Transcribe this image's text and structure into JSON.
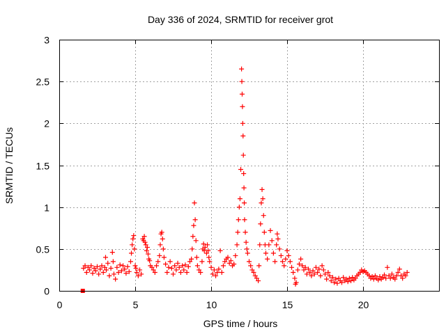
{
  "chart_data": {
    "type": "scatter",
    "title": "Day 336 of 2024, SRMTID for receiver grot",
    "xlabel": "GPS time / hours",
    "ylabel": "SRMTID / TECUs",
    "xlim": [
      0,
      25
    ],
    "ylim": [
      0,
      3
    ],
    "xticks": [
      0,
      5,
      10,
      15,
      20
    ],
    "xtick_labels": [
      "0",
      "5",
      "10",
      "15",
      "20"
    ],
    "yticks": [
      0,
      0.5,
      1,
      1.5,
      2,
      2.5,
      3
    ],
    "ytick_labels": [
      "0",
      "0.5",
      "1",
      "1.5",
      "2",
      "2.5",
      "3"
    ],
    "grid": true,
    "legend": "none",
    "marker": "plus",
    "color": "#ff0000",
    "outlier_marker": {
      "x": 1.55,
      "y": 0.0,
      "marker": "square"
    },
    "series": [
      {
        "name": "SRMTID",
        "points": [
          [
            1.6,
            0.27
          ],
          [
            1.7,
            0.3
          ],
          [
            1.8,
            0.22
          ],
          [
            1.9,
            0.28
          ],
          [
            2.0,
            0.25
          ],
          [
            2.1,
            0.3
          ],
          [
            2.2,
            0.21
          ],
          [
            2.3,
            0.27
          ],
          [
            2.4,
            0.24
          ],
          [
            2.5,
            0.29
          ],
          [
            2.6,
            0.2
          ],
          [
            2.7,
            0.26
          ],
          [
            2.8,
            0.3
          ],
          [
            2.9,
            0.22
          ],
          [
            3.0,
            0.28
          ],
          [
            3.05,
            0.4
          ],
          [
            3.1,
            0.25
          ],
          [
            3.2,
            0.33
          ],
          [
            3.3,
            0.18
          ],
          [
            3.4,
            0.27
          ],
          [
            3.5,
            0.46
          ],
          [
            3.55,
            0.35
          ],
          [
            3.6,
            0.2
          ],
          [
            3.7,
            0.14
          ],
          [
            3.8,
            0.28
          ],
          [
            3.9,
            0.22
          ],
          [
            4.0,
            0.31
          ],
          [
            4.1,
            0.24
          ],
          [
            4.2,
            0.3
          ],
          [
            4.3,
            0.26
          ],
          [
            4.4,
            0.21
          ],
          [
            4.5,
            0.29
          ],
          [
            4.6,
            0.23
          ],
          [
            4.7,
            0.35
          ],
          [
            4.75,
            0.45
          ],
          [
            4.8,
            0.55
          ],
          [
            4.85,
            0.62
          ],
          [
            4.9,
            0.66
          ],
          [
            4.95,
            0.5
          ],
          [
            5.0,
            0.3
          ],
          [
            5.05,
            0.27
          ],
          [
            5.1,
            0.22
          ],
          [
            5.2,
            0.18
          ],
          [
            5.3,
            0.25
          ],
          [
            5.4,
            0.2
          ],
          [
            5.5,
            0.62
          ],
          [
            5.55,
            0.6
          ],
          [
            5.6,
            0.65
          ],
          [
            5.65,
            0.58
          ],
          [
            5.7,
            0.55
          ],
          [
            5.75,
            0.48
          ],
          [
            5.8,
            0.52
          ],
          [
            5.85,
            0.44
          ],
          [
            5.9,
            0.38
          ],
          [
            5.95,
            0.36
          ],
          [
            6.0,
            0.3
          ],
          [
            6.1,
            0.28
          ],
          [
            6.2,
            0.25
          ],
          [
            6.3,
            0.22
          ],
          [
            6.4,
            0.3
          ],
          [
            6.5,
            0.35
          ],
          [
            6.6,
            0.42
          ],
          [
            6.65,
            0.55
          ],
          [
            6.7,
            0.68
          ],
          [
            6.75,
            0.7
          ],
          [
            6.8,
            0.62
          ],
          [
            6.85,
            0.5
          ],
          [
            6.9,
            0.4
          ],
          [
            7.0,
            0.32
          ],
          [
            7.1,
            0.22
          ],
          [
            7.2,
            0.28
          ],
          [
            7.3,
            0.35
          ],
          [
            7.4,
            0.27
          ],
          [
            7.5,
            0.2
          ],
          [
            7.6,
            0.3
          ],
          [
            7.7,
            0.25
          ],
          [
            7.8,
            0.33
          ],
          [
            7.9,
            0.28
          ],
          [
            8.0,
            0.22
          ],
          [
            8.1,
            0.3
          ],
          [
            8.2,
            0.25
          ],
          [
            8.3,
            0.31
          ],
          [
            8.4,
            0.22
          ],
          [
            8.5,
            0.29
          ],
          [
            8.6,
            0.35
          ],
          [
            8.7,
            0.38
          ],
          [
            8.75,
            0.5
          ],
          [
            8.8,
            0.65
          ],
          [
            8.85,
            0.78
          ],
          [
            8.9,
            1.05
          ],
          [
            8.95,
            0.85
          ],
          [
            9.0,
            0.6
          ],
          [
            9.05,
            0.4
          ],
          [
            9.1,
            0.3
          ],
          [
            9.2,
            0.25
          ],
          [
            9.3,
            0.22
          ],
          [
            9.4,
            0.35
          ],
          [
            9.45,
            0.5
          ],
          [
            9.5,
            0.56
          ],
          [
            9.55,
            0.48
          ],
          [
            9.6,
            0.52
          ],
          [
            9.7,
            0.45
          ],
          [
            9.75,
            0.55
          ],
          [
            9.8,
            0.48
          ],
          [
            9.85,
            0.4
          ],
          [
            9.9,
            0.35
          ],
          [
            10.0,
            0.28
          ],
          [
            10.1,
            0.2
          ],
          [
            10.2,
            0.25
          ],
          [
            10.3,
            0.18
          ],
          [
            10.4,
            0.22
          ],
          [
            10.5,
            0.26
          ],
          [
            10.6,
            0.48
          ],
          [
            10.7,
            0.22
          ],
          [
            10.8,
            0.3
          ],
          [
            10.9,
            0.35
          ],
          [
            11.0,
            0.38
          ],
          [
            11.1,
            0.4
          ],
          [
            11.2,
            0.33
          ],
          [
            11.3,
            0.36
          ],
          [
            11.4,
            0.3
          ],
          [
            11.5,
            0.32
          ],
          [
            11.6,
            0.42
          ],
          [
            11.7,
            0.55
          ],
          [
            11.75,
            0.7
          ],
          [
            11.8,
            0.85
          ],
          [
            11.85,
            1.0
          ],
          [
            11.9,
            1.1
          ],
          [
            11.95,
            1.45
          ],
          [
            12.0,
            2.65
          ],
          [
            12.02,
            2.5
          ],
          [
            12.04,
            2.35
          ],
          [
            12.06,
            2.2
          ],
          [
            12.08,
            2.0
          ],
          [
            12.1,
            1.85
          ],
          [
            12.12,
            1.62
          ],
          [
            12.14,
            1.4
          ],
          [
            12.16,
            1.23
          ],
          [
            12.18,
            1.05
          ],
          [
            12.2,
            0.85
          ],
          [
            12.25,
            0.7
          ],
          [
            12.3,
            0.58
          ],
          [
            12.35,
            0.5
          ],
          [
            12.4,
            0.45
          ],
          [
            12.5,
            0.35
          ],
          [
            12.6,
            0.3
          ],
          [
            12.7,
            0.25
          ],
          [
            12.8,
            0.22
          ],
          [
            12.9,
            0.18
          ],
          [
            13.0,
            0.15
          ],
          [
            13.1,
            0.12
          ],
          [
            13.15,
            0.3
          ],
          [
            13.2,
            0.55
          ],
          [
            13.25,
            0.8
          ],
          [
            13.3,
            1.05
          ],
          [
            13.35,
            1.21
          ],
          [
            13.4,
            1.1
          ],
          [
            13.45,
            0.9
          ],
          [
            13.5,
            0.7
          ],
          [
            13.55,
            0.55
          ],
          [
            13.6,
            0.45
          ],
          [
            13.7,
            0.38
          ],
          [
            13.8,
            0.55
          ],
          [
            13.9,
            0.72
          ],
          [
            14.0,
            0.6
          ],
          [
            14.1,
            0.45
          ],
          [
            14.2,
            0.35
          ],
          [
            14.3,
            0.55
          ],
          [
            14.35,
            0.68
          ],
          [
            14.4,
            0.62
          ],
          [
            14.5,
            0.5
          ],
          [
            14.6,
            0.42
          ],
          [
            14.7,
            0.35
          ],
          [
            14.8,
            0.3
          ],
          [
            14.9,
            0.38
          ],
          [
            15.0,
            0.48
          ],
          [
            15.1,
            0.42
          ],
          [
            15.2,
            0.35
          ],
          [
            15.3,
            0.28
          ],
          [
            15.4,
            0.22
          ],
          [
            15.5,
            0.15
          ],
          [
            15.55,
            0.08
          ],
          [
            15.6,
            0.1
          ],
          [
            15.7,
            0.25
          ],
          [
            15.8,
            0.32
          ],
          [
            15.9,
            0.38
          ],
          [
            16.0,
            0.3
          ],
          [
            16.1,
            0.25
          ],
          [
            16.2,
            0.28
          ],
          [
            16.3,
            0.2
          ],
          [
            16.4,
            0.26
          ],
          [
            16.5,
            0.22
          ],
          [
            16.6,
            0.18
          ],
          [
            16.7,
            0.24
          ],
          [
            16.8,
            0.2
          ],
          [
            16.9,
            0.28
          ],
          [
            17.0,
            0.22
          ],
          [
            17.1,
            0.26
          ],
          [
            17.2,
            0.18
          ],
          [
            17.3,
            0.3
          ],
          [
            17.4,
            0.25
          ],
          [
            17.5,
            0.2
          ],
          [
            17.6,
            0.14
          ],
          [
            17.7,
            0.22
          ],
          [
            17.8,
            0.18
          ],
          [
            17.9,
            0.12
          ],
          [
            18.0,
            0.16
          ],
          [
            18.1,
            0.1
          ],
          [
            18.2,
            0.14
          ],
          [
            18.3,
            0.09
          ],
          [
            18.4,
            0.15
          ],
          [
            18.5,
            0.12
          ],
          [
            18.6,
            0.1
          ],
          [
            18.7,
            0.16
          ],
          [
            18.8,
            0.12
          ],
          [
            18.9,
            0.14
          ],
          [
            19.0,
            0.11
          ],
          [
            19.1,
            0.15
          ],
          [
            19.2,
            0.12
          ],
          [
            19.3,
            0.16
          ],
          [
            19.4,
            0.13
          ],
          [
            19.5,
            0.15
          ],
          [
            19.6,
            0.18
          ],
          [
            19.7,
            0.2
          ],
          [
            19.8,
            0.22
          ],
          [
            19.9,
            0.25
          ],
          [
            20.0,
            0.23
          ],
          [
            20.1,
            0.24
          ],
          [
            20.2,
            0.22
          ],
          [
            20.3,
            0.2
          ],
          [
            20.4,
            0.18
          ],
          [
            20.5,
            0.15
          ],
          [
            20.6,
            0.17
          ],
          [
            20.7,
            0.14
          ],
          [
            20.8,
            0.18
          ],
          [
            20.9,
            0.15
          ],
          [
            21.0,
            0.13
          ],
          [
            21.1,
            0.17
          ],
          [
            21.2,
            0.14
          ],
          [
            21.3,
            0.16
          ],
          [
            21.4,
            0.19
          ],
          [
            21.5,
            0.15
          ],
          [
            21.6,
            0.28
          ],
          [
            21.7,
            0.18
          ],
          [
            21.8,
            0.15
          ],
          [
            21.9,
            0.2
          ],
          [
            22.0,
            0.16
          ],
          [
            22.1,
            0.14
          ],
          [
            22.2,
            0.18
          ],
          [
            22.3,
            0.22
          ],
          [
            22.4,
            0.26
          ],
          [
            22.5,
            0.18
          ],
          [
            22.6,
            0.15
          ],
          [
            22.7,
            0.2
          ],
          [
            22.8,
            0.18
          ],
          [
            22.9,
            0.22
          ]
        ]
      }
    ]
  }
}
